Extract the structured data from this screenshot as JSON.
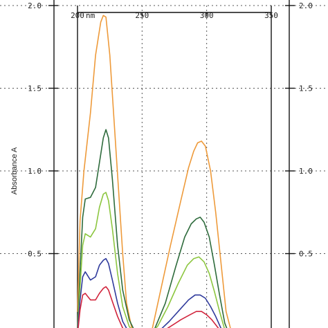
{
  "chart_data": {
    "type": "line",
    "ylabel": "Absorbance A",
    "x_unit_label": "nm",
    "xlim": [
      200,
      350
    ],
    "ylim": [
      0,
      2.0
    ],
    "x_ticks": [
      "200",
      "250",
      "300",
      "350"
    ],
    "y_ticks_left": [
      "0.5",
      "1.0",
      "1.5",
      "2.0"
    ],
    "y_ticks_right": [
      "0.5",
      "1.0",
      "1.5",
      "2.0"
    ],
    "grid": true,
    "series": [
      {
        "color": "#ee9a3a",
        "points": [
          [
            200,
            0.15
          ],
          [
            202,
            0.7
          ],
          [
            205,
            1.0
          ],
          [
            210,
            1.35
          ],
          [
            214,
            1.7
          ],
          [
            218,
            1.9
          ],
          [
            220,
            1.94
          ],
          [
            222,
            1.93
          ],
          [
            225,
            1.7
          ],
          [
            230,
            1.1
          ],
          [
            235,
            0.5
          ],
          [
            238,
            0.2
          ],
          [
            242,
            0.05
          ],
          [
            247,
            0.0
          ],
          [
            252,
            0.0
          ],
          [
            258,
            0.05
          ],
          [
            265,
            0.3
          ],
          [
            272,
            0.55
          ],
          [
            280,
            0.82
          ],
          [
            286,
            1.02
          ],
          [
            290,
            1.12
          ],
          [
            293,
            1.17
          ],
          [
            296,
            1.18
          ],
          [
            299,
            1.15
          ],
          [
            303,
            1.0
          ],
          [
            307,
            0.75
          ],
          [
            311,
            0.45
          ],
          [
            315,
            0.15
          ],
          [
            320,
            0.0
          ]
        ]
      },
      {
        "color": "#2e6b3c",
        "points": [
          [
            200,
            0.05
          ],
          [
            202,
            0.4
          ],
          [
            204,
            0.72
          ],
          [
            206,
            0.83
          ],
          [
            210,
            0.84
          ],
          [
            214,
            0.9
          ],
          [
            217,
            1.05
          ],
          [
            220,
            1.2
          ],
          [
            222,
            1.25
          ],
          [
            224,
            1.2
          ],
          [
            227,
            0.95
          ],
          [
            231,
            0.55
          ],
          [
            235,
            0.28
          ],
          [
            240,
            0.1
          ],
          [
            245,
            0.02
          ],
          [
            252,
            0.0
          ],
          [
            260,
            0.05
          ],
          [
            268,
            0.2
          ],
          [
            276,
            0.42
          ],
          [
            283,
            0.6
          ],
          [
            288,
            0.68
          ],
          [
            292,
            0.71
          ],
          [
            295,
            0.72
          ],
          [
            298,
            0.69
          ],
          [
            302,
            0.6
          ],
          [
            306,
            0.43
          ],
          [
            310,
            0.25
          ],
          [
            314,
            0.08
          ],
          [
            318,
            0.0
          ]
        ]
      },
      {
        "color": "#8cc63f",
        "points": [
          [
            200,
            0.03
          ],
          [
            202,
            0.3
          ],
          [
            204,
            0.55
          ],
          [
            206,
            0.62
          ],
          [
            210,
            0.6
          ],
          [
            214,
            0.65
          ],
          [
            217,
            0.78
          ],
          [
            220,
            0.86
          ],
          [
            222,
            0.87
          ],
          [
            224,
            0.82
          ],
          [
            227,
            0.65
          ],
          [
            231,
            0.38
          ],
          [
            235,
            0.18
          ],
          [
            240,
            0.06
          ],
          [
            246,
            0.0
          ],
          [
            254,
            0.0
          ],
          [
            262,
            0.06
          ],
          [
            270,
            0.18
          ],
          [
            278,
            0.32
          ],
          [
            285,
            0.43
          ],
          [
            290,
            0.47
          ],
          [
            294,
            0.48
          ],
          [
            298,
            0.45
          ],
          [
            302,
            0.38
          ],
          [
            306,
            0.27
          ],
          [
            310,
            0.15
          ],
          [
            314,
            0.04
          ],
          [
            317,
            0.0
          ]
        ]
      },
      {
        "color": "#2f3a9c",
        "points": [
          [
            200,
            0.02
          ],
          [
            202,
            0.22
          ],
          [
            204,
            0.36
          ],
          [
            206,
            0.39
          ],
          [
            210,
            0.34
          ],
          [
            214,
            0.36
          ],
          [
            217,
            0.43
          ],
          [
            220,
            0.46
          ],
          [
            222,
            0.47
          ],
          [
            224,
            0.44
          ],
          [
            227,
            0.34
          ],
          [
            231,
            0.2
          ],
          [
            235,
            0.09
          ],
          [
            240,
            0.02
          ],
          [
            246,
            0.0
          ],
          [
            255,
            0.0
          ],
          [
            263,
            0.03
          ],
          [
            271,
            0.09
          ],
          [
            279,
            0.16
          ],
          [
            286,
            0.22
          ],
          [
            291,
            0.25
          ],
          [
            295,
            0.25
          ],
          [
            299,
            0.23
          ],
          [
            303,
            0.18
          ],
          [
            307,
            0.12
          ],
          [
            311,
            0.05
          ],
          [
            315,
            0.0
          ]
        ]
      },
      {
        "color": "#d1243c",
        "points": [
          [
            200,
            0.01
          ],
          [
            202,
            0.16
          ],
          [
            204,
            0.25
          ],
          [
            206,
            0.26
          ],
          [
            210,
            0.22
          ],
          [
            214,
            0.22
          ],
          [
            217,
            0.26
          ],
          [
            220,
            0.29
          ],
          [
            222,
            0.3
          ],
          [
            224,
            0.28
          ],
          [
            227,
            0.21
          ],
          [
            231,
            0.12
          ],
          [
            235,
            0.05
          ],
          [
            240,
            0.01
          ],
          [
            246,
            0.0
          ],
          [
            256,
            0.0
          ],
          [
            264,
            0.02
          ],
          [
            272,
            0.06
          ],
          [
            280,
            0.1
          ],
          [
            287,
            0.13
          ],
          [
            292,
            0.15
          ],
          [
            296,
            0.15
          ],
          [
            300,
            0.13
          ],
          [
            304,
            0.1
          ],
          [
            308,
            0.06
          ],
          [
            312,
            0.02
          ],
          [
            315,
            0.0
          ]
        ]
      }
    ]
  }
}
